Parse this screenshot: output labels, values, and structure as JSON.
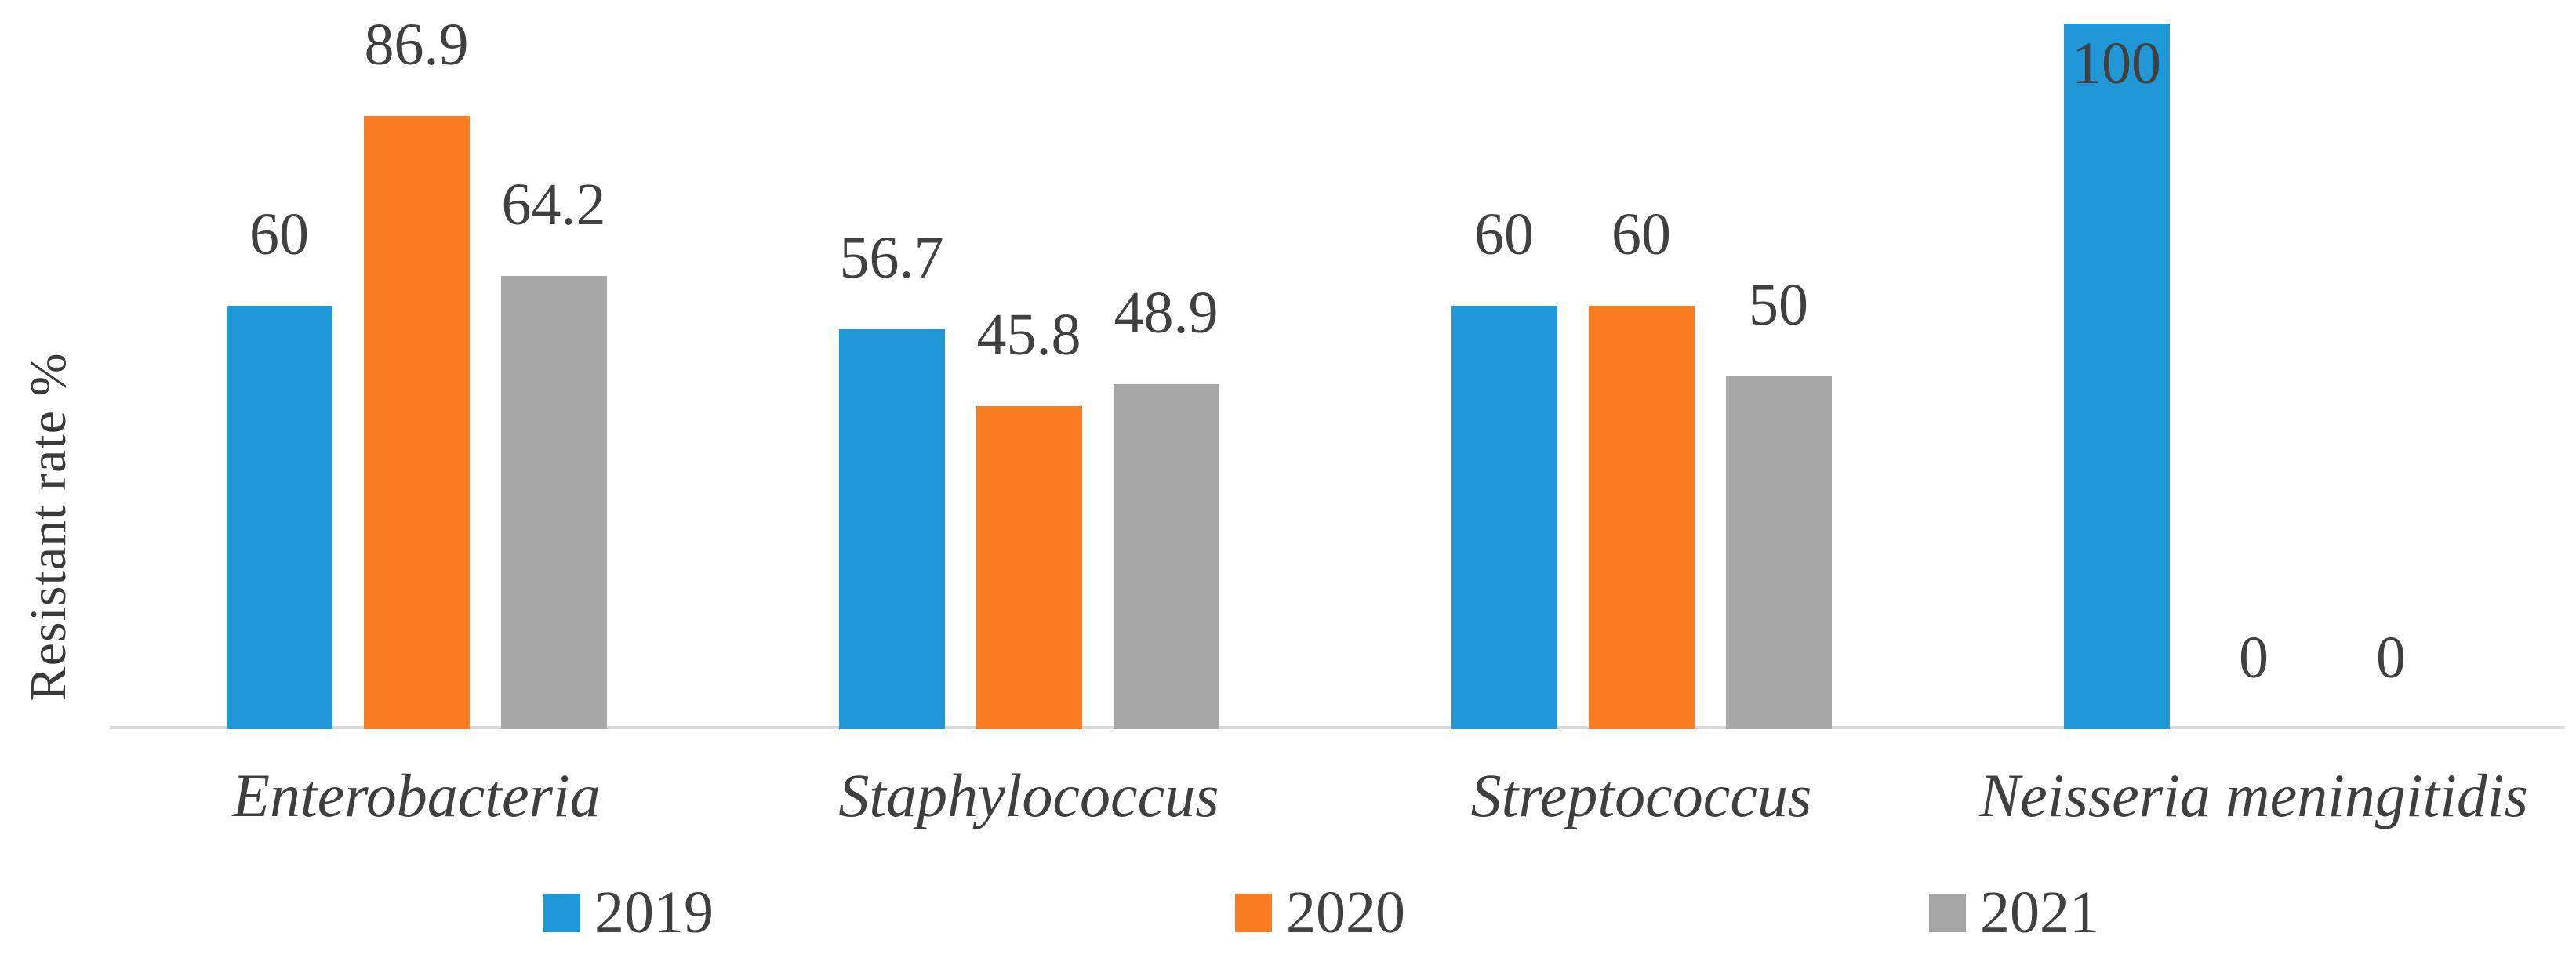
{
  "chart_data": {
    "type": "bar",
    "title": "",
    "xlabel": "",
    "ylabel": "Resistant rate %",
    "categories": [
      "Enterobacteria",
      "Staphylococcus",
      "Streptococcus",
      "Neisseria meningitidis"
    ],
    "series": [
      {
        "name": "2019",
        "color": "#2098d8",
        "values": [
          60,
          56.7,
          60,
          100
        ]
      },
      {
        "name": "2020",
        "color": "#fb7d23",
        "values": [
          86.9,
          45.8,
          60,
          0
        ]
      },
      {
        "name": "2021",
        "color": "#a6a6a6",
        "values": [
          64.2,
          48.9,
          50,
          0
        ]
      }
    ],
    "ylim": [
      0,
      100
    ],
    "grid": false,
    "legend_position": "bottom",
    "data_labels_shown": true,
    "colors": {
      "axis_line": "#d9d9d9",
      "data_label": "#404040",
      "category_label": "#3f3f3f",
      "axis_title": "#3a3a3a"
    }
  }
}
